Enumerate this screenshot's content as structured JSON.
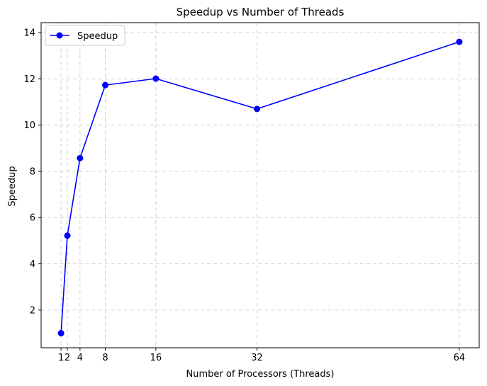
{
  "colors": {
    "series": "#0000ff",
    "grid": "#cccccc",
    "axis": "#000000",
    "background": "#ffffff"
  },
  "chart_data": {
    "type": "line",
    "title": "Speedup vs Number of Threads",
    "xlabel": "Number of Processors (Threads)",
    "ylabel": "Speedup",
    "x": [
      1,
      2,
      4,
      8,
      16,
      32,
      64
    ],
    "xticks": [
      1,
      2,
      4,
      8,
      16,
      32,
      64
    ],
    "xtick_labels": [
      "1",
      "2",
      "4",
      "8",
      "16",
      "32",
      "64"
    ],
    "yticks": [
      2,
      4,
      6,
      8,
      10,
      12,
      14
    ],
    "ytick_labels": [
      "2",
      "4",
      "6",
      "8",
      "10",
      "12",
      "14"
    ],
    "xlim": [
      -2.15,
      67.15
    ],
    "ylim": [
      0.37,
      14.43
    ],
    "series": [
      {
        "name": "Speedup",
        "values": [
          1.0,
          5.22,
          8.57,
          11.73,
          12.01,
          10.7,
          13.6
        ],
        "marker": "circle",
        "color": "#0000ff"
      }
    ],
    "grid": true,
    "grid_style": "dashed",
    "legend_position": "upper-left"
  }
}
